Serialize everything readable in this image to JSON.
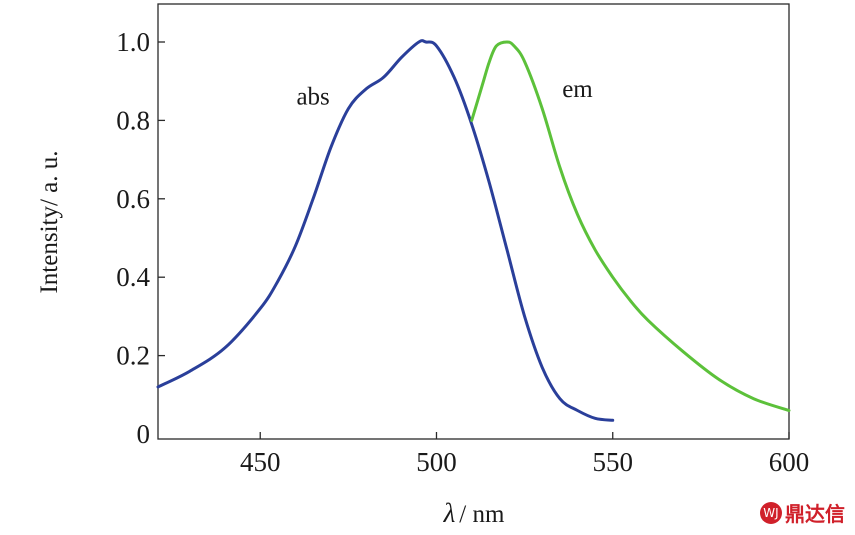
{
  "chart_data": {
    "type": "line",
    "xlabel_symbol": "λ",
    "xlabel_unit": "/ nm",
    "ylabel": "Intensity/ a. u.",
    "xlim": [
      421,
      600
    ],
    "ylim": [
      0,
      1.1
    ],
    "xticks": [
      450,
      500,
      550,
      600
    ],
    "xtick_labels": [
      "450",
      "500",
      "550",
      "600"
    ],
    "yticks": [
      0,
      0.2,
      0.4,
      0.6,
      0.8,
      1.0
    ],
    "ytick_labels": [
      "0",
      "0.2",
      "0.4",
      "0.6",
      "0.8",
      "1.0"
    ],
    "grid": false,
    "legend": "none",
    "series": [
      {
        "name": "abs",
        "color": "#2a3f9a",
        "x": [
          421,
          430,
          440,
          450,
          455,
          460,
          465,
          470,
          475,
          480,
          485,
          490,
          495,
          497,
          500,
          505,
          510,
          515,
          520,
          525,
          530,
          535,
          540,
          545,
          550
        ],
        "y": [
          0.12,
          0.16,
          0.22,
          0.32,
          0.39,
          0.48,
          0.6,
          0.73,
          0.83,
          0.88,
          0.91,
          0.96,
          1.0,
          1.0,
          0.99,
          0.91,
          0.79,
          0.64,
          0.47,
          0.3,
          0.17,
          0.09,
          0.06,
          0.04,
          0.035
        ]
      },
      {
        "name": "em",
        "color": "#5cc13a",
        "x": [
          510,
          513,
          515,
          517,
          520,
          522,
          525,
          530,
          535,
          540,
          545,
          550,
          555,
          560,
          570,
          580,
          590,
          600
        ],
        "y": [
          0.8,
          0.89,
          0.95,
          0.99,
          1.0,
          0.99,
          0.95,
          0.83,
          0.68,
          0.56,
          0.47,
          0.4,
          0.34,
          0.29,
          0.21,
          0.14,
          0.09,
          0.06
        ]
      }
    ],
    "annotations": [
      {
        "text": "abs",
        "x": 465,
        "y": 0.84
      },
      {
        "text": "em",
        "x": 540,
        "y": 0.86
      }
    ]
  },
  "watermark": {
    "icon_text": "WJ",
    "text": "鼎达信"
  }
}
